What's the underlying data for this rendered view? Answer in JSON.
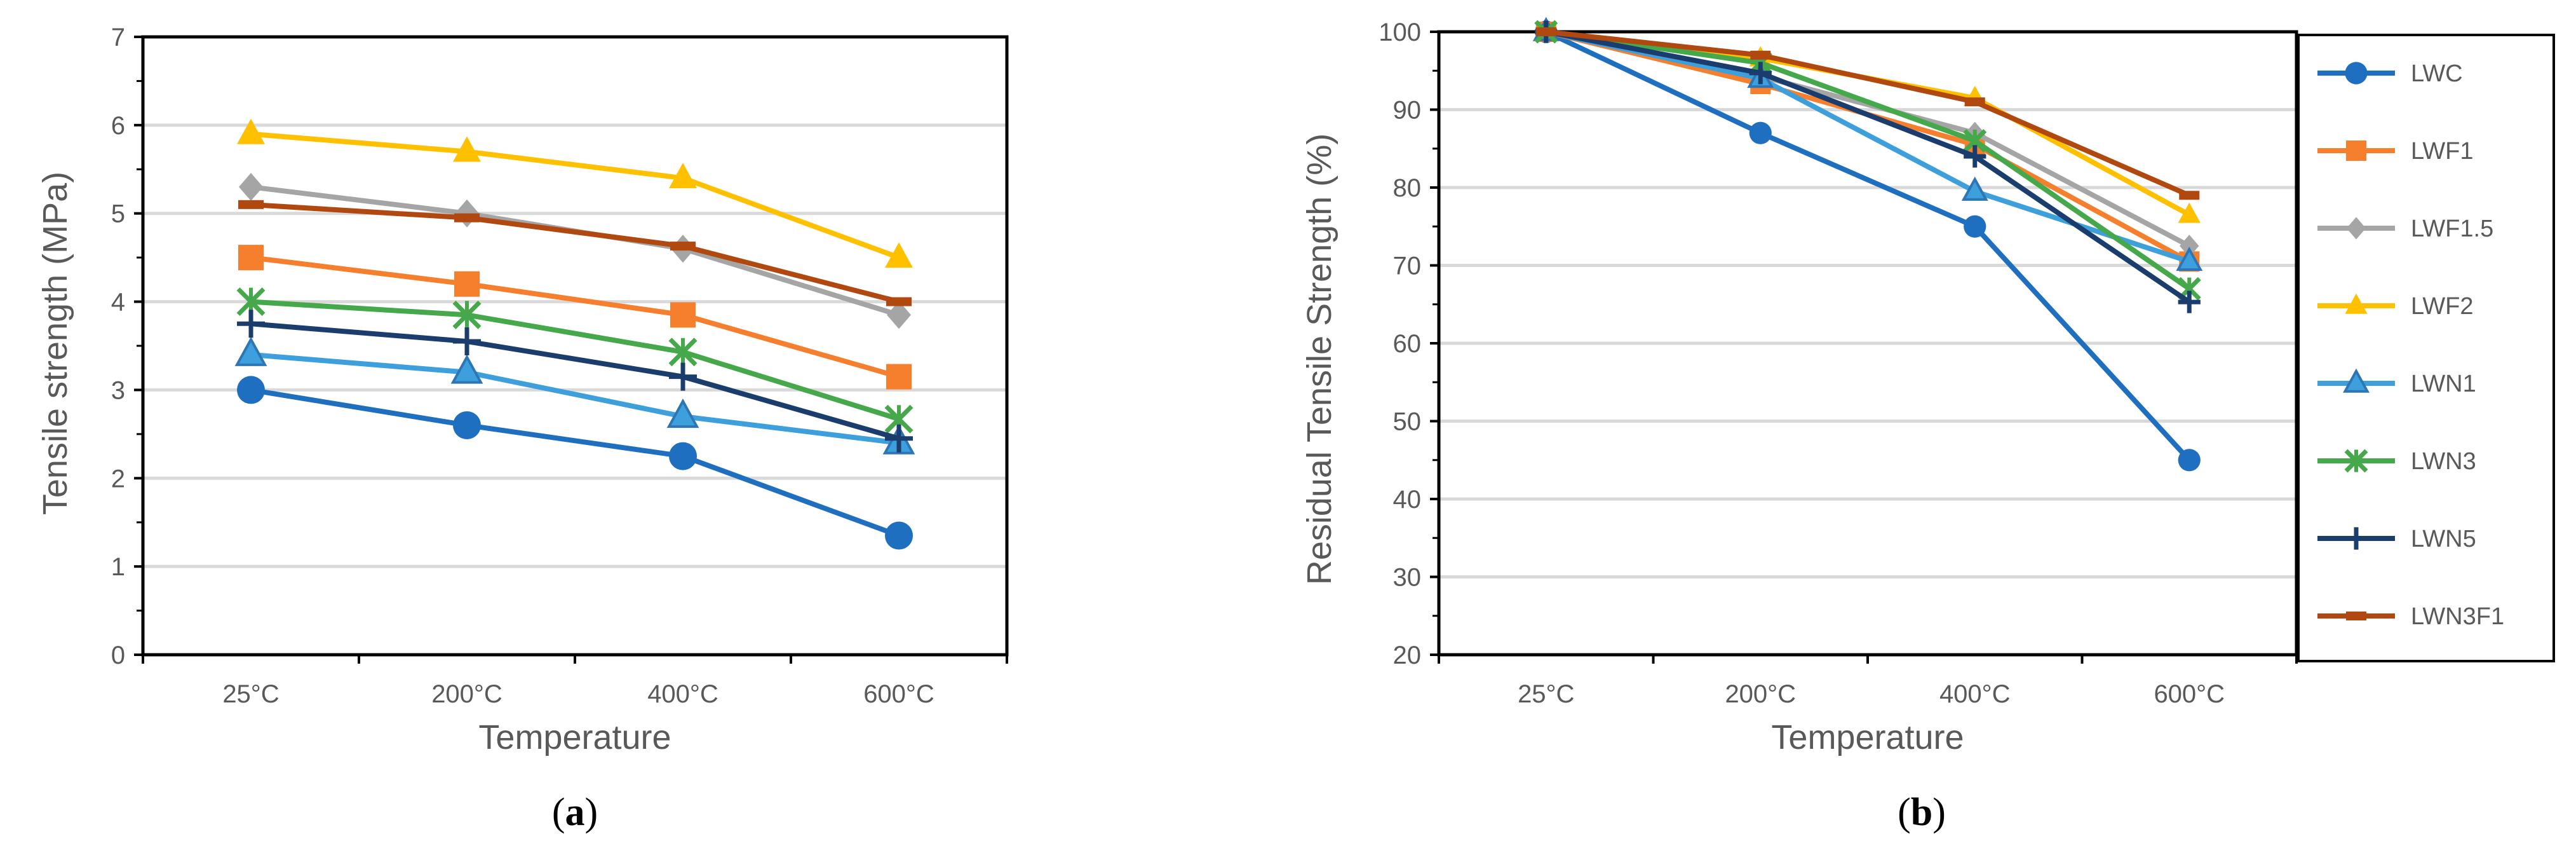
{
  "captions": {
    "a": "a",
    "b": "b"
  },
  "series_styles": [
    {
      "name": "LWC",
      "color": "#1F6FC0",
      "marker": "circle"
    },
    {
      "name": "LWF1",
      "color": "#F57F2C",
      "marker": "square"
    },
    {
      "name": "LWF1.5",
      "color": "#A5A5A5",
      "marker": "diamond"
    },
    {
      "name": "LWF2",
      "color": "#FFC000",
      "marker": "triangle"
    },
    {
      "name": "LWN1",
      "color": "#3D9FDB",
      "marker": "triangle"
    },
    {
      "name": "LWN3",
      "color": "#45A84A",
      "marker": "asterisk"
    },
    {
      "name": "LWN5",
      "color": "#1A3D6D",
      "marker": "plus"
    },
    {
      "name": "LWN3F1",
      "color": "#B0480F",
      "marker": "dash"
    }
  ],
  "chart_data": [
    {
      "type": "line",
      "xlabel": "Temperature",
      "ylabel": "Tensile strength (MPa)",
      "categories": [
        "25°C",
        "200°C",
        "400°C",
        "600°C"
      ],
      "ylim": [
        0,
        7
      ],
      "yticks": [
        0,
        1,
        2,
        3,
        4,
        5,
        6,
        7
      ],
      "grid": true,
      "legend": "none",
      "series": [
        {
          "name": "LWC",
          "values": [
            3.0,
            2.6,
            2.25,
            1.35
          ]
        },
        {
          "name": "LWF1",
          "values": [
            4.5,
            4.2,
            3.85,
            3.15
          ]
        },
        {
          "name": "LWF1.5",
          "values": [
            5.3,
            5.0,
            4.6,
            3.85
          ]
        },
        {
          "name": "LWF2",
          "values": [
            5.9,
            5.7,
            5.4,
            4.5
          ]
        },
        {
          "name": "LWN1",
          "values": [
            3.4,
            3.2,
            2.7,
            2.4
          ]
        },
        {
          "name": "LWN3",
          "values": [
            4.0,
            3.85,
            3.43,
            2.67
          ]
        },
        {
          "name": "LWN5",
          "values": [
            3.75,
            3.55,
            3.15,
            2.45
          ]
        },
        {
          "name": "LWN3F1",
          "values": [
            5.1,
            4.95,
            4.63,
            4.0
          ]
        }
      ]
    },
    {
      "type": "line",
      "xlabel": "Temperature",
      "ylabel": "Residual Tensile Strength (%)",
      "categories": [
        "25°C",
        "200°C",
        "400°C",
        "600°C"
      ],
      "ylim": [
        20,
        100
      ],
      "yticks": [
        20,
        30,
        40,
        50,
        60,
        70,
        80,
        90,
        100
      ],
      "grid": true,
      "legend": "right",
      "series": [
        {
          "name": "LWC",
          "values": [
            100,
            87,
            75,
            45
          ]
        },
        {
          "name": "LWF1",
          "values": [
            100,
            93.3,
            85.5,
            70.5
          ]
        },
        {
          "name": "LWF1.5",
          "values": [
            100,
            94.3,
            87,
            72.5
          ]
        },
        {
          "name": "LWF2",
          "values": [
            100,
            96.6,
            91.5,
            76.5
          ]
        },
        {
          "name": "LWN1",
          "values": [
            100,
            94,
            79.5,
            70.5
          ]
        },
        {
          "name": "LWN3",
          "values": [
            100,
            96,
            86,
            67
          ]
        },
        {
          "name": "LWN5",
          "values": [
            100,
            94.7,
            84,
            65.3
          ]
        },
        {
          "name": "LWN3F1",
          "values": [
            100,
            97,
            91,
            79
          ]
        }
      ]
    }
  ]
}
